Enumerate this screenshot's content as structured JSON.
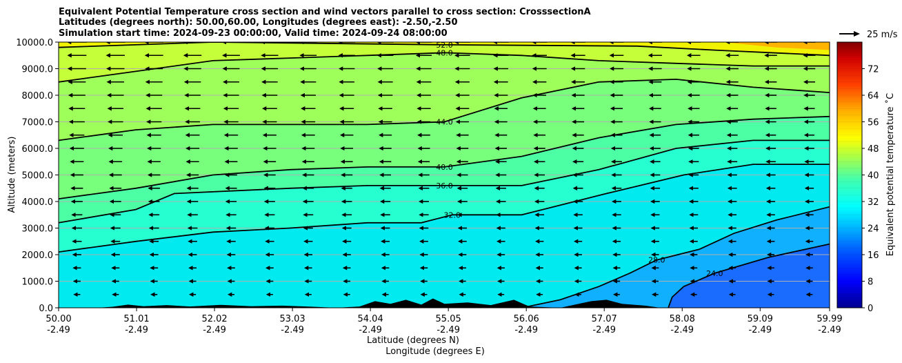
{
  "chart_data": {
    "type": "heatmap",
    "subtype": "cross-section filled contour with line contours and wind vectors",
    "title_lines": [
      "Equivalent Potential Temperature cross section and wind vectors parallel to cross section: CrosssectionA",
      "Latitudes (degrees north): 50.00,60.00, Longitudes (degrees east): -2.50,-2.50",
      "Simulation start time: 2024-09-23 00:00:00, Valid time: 2024-09-24 08:00:00"
    ],
    "ylabel": "Altitude (meters)",
    "xlabel_lines": [
      "Latitude (degrees N)",
      "Longitude (degrees E)"
    ],
    "xlim": [
      50.0,
      59.99
    ],
    "ylim": [
      0,
      10000
    ],
    "grid": true,
    "x_ticks": [
      {
        "lat": "50.00",
        "lon": "-2.49"
      },
      {
        "lat": "51.01",
        "lon": "-2.49"
      },
      {
        "lat": "52.02",
        "lon": "-2.49"
      },
      {
        "lat": "53.03",
        "lon": "-2.49"
      },
      {
        "lat": "54.04",
        "lon": "-2.49"
      },
      {
        "lat": "55.05",
        "lon": "-2.49"
      },
      {
        "lat": "56.06",
        "lon": "-2.49"
      },
      {
        "lat": "57.07",
        "lon": "-2.49"
      },
      {
        "lat": "58.08",
        "lon": "-2.49"
      },
      {
        "lat": "59.09",
        "lon": "-2.49"
      },
      {
        "lat": "59.99",
        "lon": "-2.49"
      }
    ],
    "y_ticks": [
      "0.0",
      "1000.0",
      "2000.0",
      "3000.0",
      "4000.0",
      "5000.0",
      "6000.0",
      "7000.0",
      "8000.0",
      "9000.0",
      "10000.0"
    ],
    "y_tick_values": [
      0,
      1000,
      2000,
      3000,
      4000,
      5000,
      6000,
      7000,
      8000,
      9000,
      10000
    ],
    "colorbar": {
      "label": "Equivalent potential temperature ˚C",
      "range": [
        0,
        80
      ],
      "ticks": [
        "0",
        "8",
        "16",
        "24",
        "32",
        "40",
        "48",
        "56",
        "64",
        "72"
      ],
      "tick_values": [
        0,
        8,
        16,
        24,
        32,
        40,
        48,
        56,
        64,
        72
      ]
    },
    "quiver_key": {
      "label": "25 m/s",
      "speed": 25
    },
    "contours": [
      {
        "level": "24.0",
        "points": [
          [
            57.9,
            0
          ],
          [
            57.95,
            400
          ],
          [
            58.1,
            800
          ],
          [
            58.5,
            1300
          ],
          [
            59.2,
            1900
          ],
          [
            59.99,
            2400
          ]
        ]
      },
      {
        "level": "28.0",
        "points": [
          [
            56.0,
            0
          ],
          [
            56.5,
            300
          ],
          [
            57.0,
            800
          ],
          [
            57.4,
            1300
          ],
          [
            57.75,
            1800
          ],
          [
            58.3,
            2200
          ],
          [
            58.75,
            2800
          ],
          [
            59.3,
            3300
          ],
          [
            59.99,
            3800
          ]
        ]
      },
      {
        "level": "32.0",
        "points": [
          [
            50.0,
            2100
          ],
          [
            51.0,
            2500
          ],
          [
            52.0,
            2850
          ],
          [
            53.0,
            3000
          ],
          [
            54.0,
            3200
          ],
          [
            54.7,
            3200
          ],
          [
            55.1,
            3500
          ],
          [
            56.0,
            3500
          ],
          [
            57.1,
            4300
          ],
          [
            58.1,
            5000
          ],
          [
            59.0,
            5400
          ],
          [
            59.99,
            5400
          ]
        ]
      },
      {
        "level": "36.0",
        "points": [
          [
            50.0,
            3200
          ],
          [
            51.0,
            3700
          ],
          [
            51.5,
            4300
          ],
          [
            53.0,
            4500
          ],
          [
            54.0,
            4600
          ],
          [
            55.0,
            4600
          ],
          [
            56.0,
            4600
          ],
          [
            57.0,
            5200
          ],
          [
            58.0,
            6000
          ],
          [
            59.0,
            6300
          ],
          [
            59.99,
            6300
          ]
        ]
      },
      {
        "level": "40.0",
        "points": [
          [
            50.0,
            4100
          ],
          [
            51.0,
            4500
          ],
          [
            52.0,
            5000
          ],
          [
            53.0,
            5200
          ],
          [
            54.0,
            5300
          ],
          [
            55.0,
            5300
          ],
          [
            56.0,
            5700
          ],
          [
            57.0,
            6400
          ],
          [
            58.0,
            6900
          ],
          [
            59.0,
            7100
          ],
          [
            59.99,
            7200
          ]
        ]
      },
      {
        "level": "44.0",
        "points": [
          [
            50.0,
            6300
          ],
          [
            51.0,
            6700
          ],
          [
            52.0,
            6900
          ],
          [
            53.0,
            6900
          ],
          [
            54.0,
            6900
          ],
          [
            55.0,
            7000
          ],
          [
            56.0,
            7900
          ],
          [
            57.0,
            8500
          ],
          [
            58.0,
            8600
          ],
          [
            59.0,
            8300
          ],
          [
            59.99,
            8100
          ]
        ]
      },
      {
        "level": "48.0",
        "points": [
          [
            50.0,
            8500
          ],
          [
            51.0,
            8900
          ],
          [
            52.0,
            9300
          ],
          [
            53.0,
            9400
          ],
          [
            54.0,
            9500
          ],
          [
            55.0,
            9600
          ],
          [
            56.0,
            9500
          ],
          [
            57.0,
            9300
          ],
          [
            58.0,
            9200
          ],
          [
            59.0,
            9100
          ],
          [
            59.99,
            9100
          ]
        ]
      },
      {
        "level": "52.0",
        "points": [
          [
            50.0,
            9800
          ],
          [
            51.0,
            9900
          ],
          [
            52.0,
            10000
          ],
          [
            55.0,
            9900
          ],
          [
            57.5,
            9850
          ],
          [
            58.5,
            9700
          ],
          [
            59.99,
            9500
          ]
        ]
      }
    ],
    "fill_bands": [
      {
        "level": 28,
        "color": "#1c96ff",
        "region": "lower-right"
      },
      {
        "level": 32,
        "color": "#00e8ff",
        "region": "lower"
      },
      {
        "level": 36,
        "color": "#26ffd0",
        "region": "lower-mid"
      },
      {
        "level": 40,
        "color": "#5cff9a",
        "region": "mid"
      },
      {
        "level": 44,
        "color": "#8eff6a",
        "region": "upper-mid"
      },
      {
        "level": 48,
        "color": "#c4ff3a",
        "region": "upper"
      },
      {
        "level": 52,
        "color": "#f0f200",
        "region": "top"
      },
      {
        "level": 56,
        "color": "#ffb400",
        "region": "top-right"
      }
    ],
    "wind_description": "Mostly westward (leftward) vectors aloft, decreasing in length toward the surface and toward the north"
  }
}
